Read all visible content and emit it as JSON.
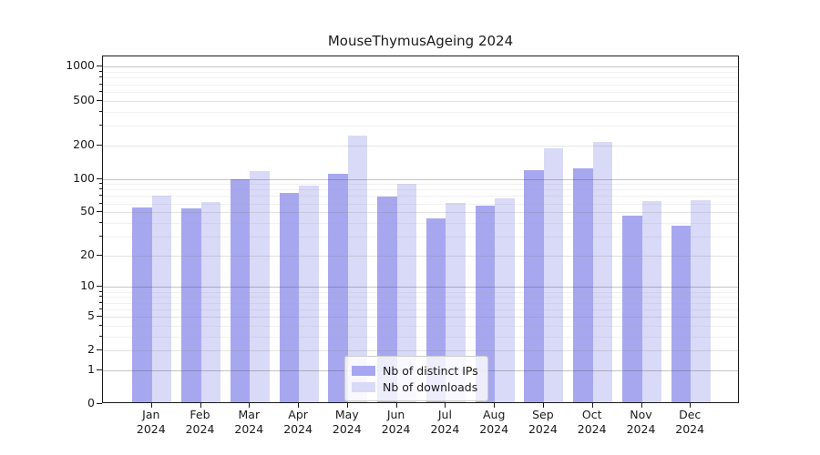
{
  "chart_data": {
    "type": "bar",
    "title": "MouseThymusAgeing 2024",
    "categories": [
      "Jan",
      "Feb",
      "Mar",
      "Apr",
      "May",
      "Jun",
      "Jul",
      "Aug",
      "Sep",
      "Oct",
      "Nov",
      "Dec"
    ],
    "xtick_year": "2024",
    "series": [
      {
        "name": "Nb of distinct IPs",
        "color": "#a7a7f0",
        "values": [
          53,
          52,
          95,
          72,
          106,
          67,
          42,
          55,
          116,
          119,
          45,
          36
        ]
      },
      {
        "name": "Nb of downloads",
        "color": "#d9d9f8",
        "values": [
          68,
          60,
          112,
          84,
          237,
          87,
          58,
          64,
          182,
          208,
          61,
          62
        ]
      }
    ],
    "ytick_values": [
      0,
      1,
      2,
      5,
      10,
      20,
      50,
      100,
      200,
      500,
      1000
    ],
    "ytick_labels": [
      "0",
      "1",
      "2",
      "5",
      "10",
      "20",
      "50",
      "100",
      "200",
      "500",
      "1000"
    ],
    "xlabel": "",
    "ylabel": "",
    "yscale": "log10(1+v)",
    "ylim": [
      0,
      1250
    ],
    "grid": "horizontal, major and minor, drawn over bars",
    "legend_position": "lower center inside plot"
  }
}
